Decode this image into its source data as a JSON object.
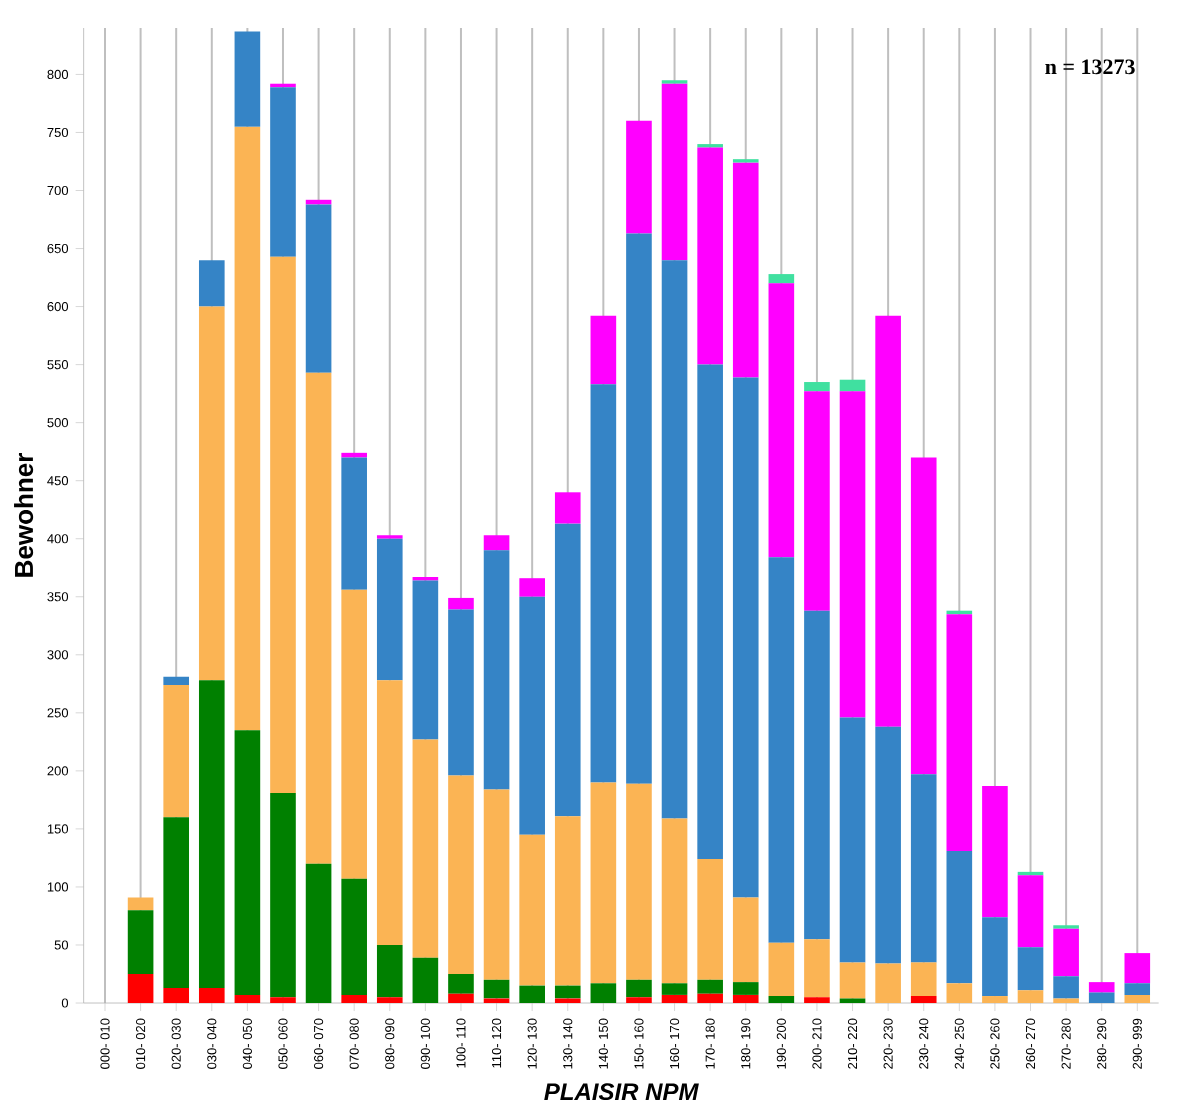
{
  "chart_data": {
    "type": "bar",
    "stacked": true,
    "xlabel": "PLAISIR NPM",
    "ylabel": "Bewohner",
    "annotations": [
      "n = 13273"
    ],
    "categories": [
      "000- 010",
      "010- 020",
      "020- 030",
      "030- 040",
      "040- 050",
      "050- 060",
      "060- 070",
      "070- 080",
      "080- 090",
      "090- 100",
      "100- 110",
      "110- 120",
      "120- 130",
      "130- 140",
      "140- 150",
      "150- 160",
      "160- 170",
      "170- 180",
      "180- 190",
      "190- 200",
      "200- 210",
      "210- 220",
      "220- 230",
      "230- 240",
      "240- 250",
      "250- 260",
      "260- 270",
      "270- 280",
      "280- 290",
      "290- 999"
    ],
    "series": [
      {
        "color": "#ff0000",
        "values": [
          0,
          25,
          13,
          13,
          7,
          5,
          0,
          7,
          5,
          0,
          8,
          4,
          0,
          4,
          0,
          5,
          7,
          8,
          7,
          0,
          5,
          0,
          0,
          6,
          0,
          0,
          0,
          0,
          0,
          0
        ]
      },
      {
        "color": "#008000",
        "values": [
          0,
          55,
          147,
          265,
          228,
          176,
          120,
          100,
          45,
          39,
          17,
          16,
          15,
          11,
          17,
          15,
          10,
          12,
          11,
          6,
          0,
          4,
          0,
          0,
          0,
          0,
          0,
          0,
          0,
          0
        ]
      },
      {
        "color": "#fbb454",
        "values": [
          0,
          11,
          114,
          322,
          520,
          462,
          423,
          249,
          228,
          188,
          171,
          164,
          130,
          146,
          173,
          169,
          142,
          104,
          73,
          46,
          50,
          31,
          34,
          29,
          17,
          6,
          11,
          4,
          0,
          7
        ]
      },
      {
        "color": "#3584c6",
        "values": [
          0,
          0,
          7,
          40,
          82,
          146,
          145,
          114,
          122,
          137,
          143,
          206,
          205,
          252,
          343,
          474,
          481,
          426,
          448,
          332,
          283,
          211,
          204,
          162,
          114,
          68,
          37,
          19,
          9,
          10
        ]
      },
      {
        "color": "#ff00ff",
        "values": [
          0,
          0,
          0,
          0,
          0,
          3,
          4,
          4,
          3,
          3,
          10,
          13,
          16,
          27,
          59,
          97,
          152,
          187,
          185,
          236,
          189,
          281,
          354,
          273,
          204,
          113,
          62,
          41,
          9,
          26
        ]
      },
      {
        "color": "#40e0a0",
        "values": [
          0,
          0,
          0,
          0,
          0,
          0,
          0,
          0,
          0,
          0,
          0,
          0,
          0,
          0,
          0,
          0,
          3,
          3,
          3,
          8,
          8,
          10,
          0,
          0,
          3,
          0,
          3,
          3,
          0,
          0
        ]
      }
    ],
    "ylim": [
      0,
      840
    ],
    "yticks": [
      0,
      50,
      100,
      150,
      200,
      250,
      300,
      350,
      400,
      450,
      500,
      550,
      600,
      650,
      700,
      750,
      800
    ],
    "grid": "x"
  }
}
